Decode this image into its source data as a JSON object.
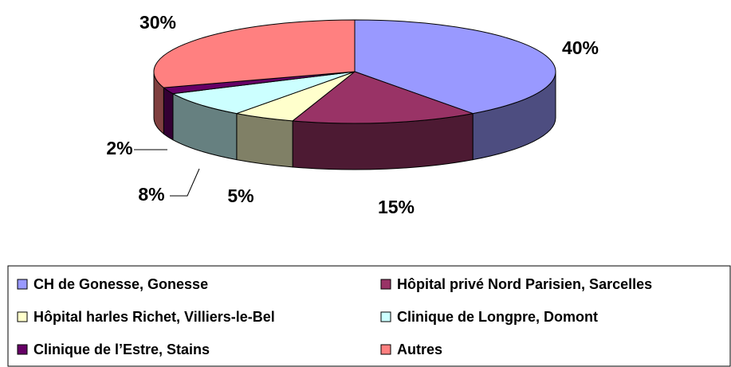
{
  "chart_data": {
    "type": "pie3d",
    "categories": [
      "CH de Gonesse, Gonesse",
      "Hôpital privé Nord Parisien, Sarcelles",
      "Hôpital harles Richet, Villiers-le-Bel",
      "Clinique de Longpre, Domont",
      "Clinique de l’Estre, Stains",
      "Autres"
    ],
    "values": [
      40,
      15,
      5,
      8,
      2,
      30
    ],
    "value_labels": [
      "40%",
      "15%",
      "5%",
      "8%",
      "2%",
      "30%"
    ],
    "colors": [
      "#9999ff",
      "#993366",
      "#ffffcc",
      "#ccffff",
      "#660066",
      "#ff8080"
    ],
    "legend": "bottom"
  }
}
